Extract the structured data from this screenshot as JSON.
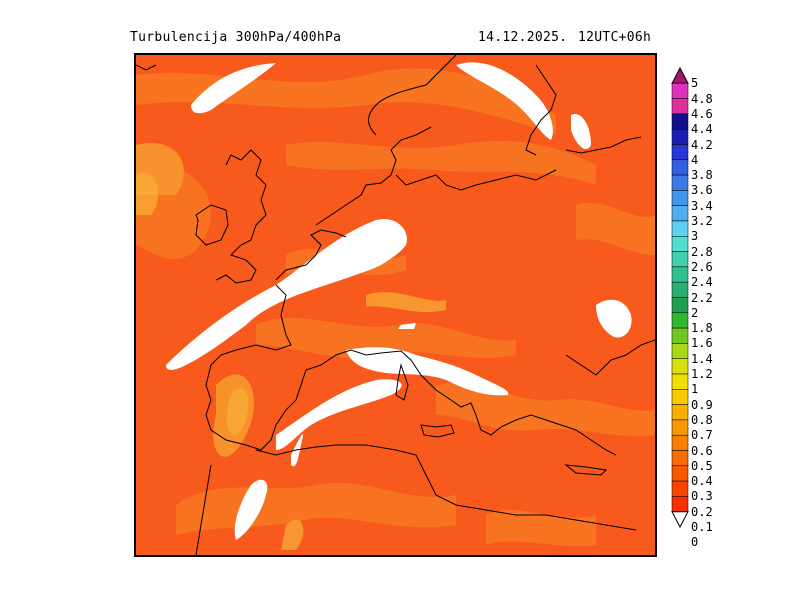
{
  "header": {
    "title_left": "Turbulencija 300hPa/400hPa",
    "date": "14.12.2025.",
    "valid": "12UTC+06h"
  },
  "legend": {
    "levels": [
      "5",
      "4.8",
      "4.6",
      "4.4",
      "4.2",
      "4",
      "3.8",
      "3.6",
      "3.4",
      "3.2",
      "3",
      "2.8",
      "2.6",
      "2.4",
      "2.2",
      "2",
      "1.8",
      "1.6",
      "1.4",
      "1.2",
      "1",
      "0.9",
      "0.8",
      "0.7",
      "0.6",
      "0.5",
      "0.4",
      "0.3",
      "0.2",
      "0.1",
      "0"
    ],
    "colors": [
      "#c0248c",
      "#e030c0",
      "#e030a0",
      "#10108a",
      "#1c20b0",
      "#2838d8",
      "#3060e0",
      "#3a78e8",
      "#4494ec",
      "#50aef0",
      "#60d0f0",
      "#50e0d0",
      "#40d0b0",
      "#30c090",
      "#28b070",
      "#20a050",
      "#30b830",
      "#70c820",
      "#a8d818",
      "#d8e010",
      "#f0e000",
      "#f8c800",
      "#f8b000",
      "#f89800",
      "#f88000",
      "#f86c00",
      "#f85800",
      "#f84400",
      "#f83000",
      "#ffffff"
    ],
    "top_arrow_color": "#a01870",
    "field_color": "#f8501e"
  }
}
